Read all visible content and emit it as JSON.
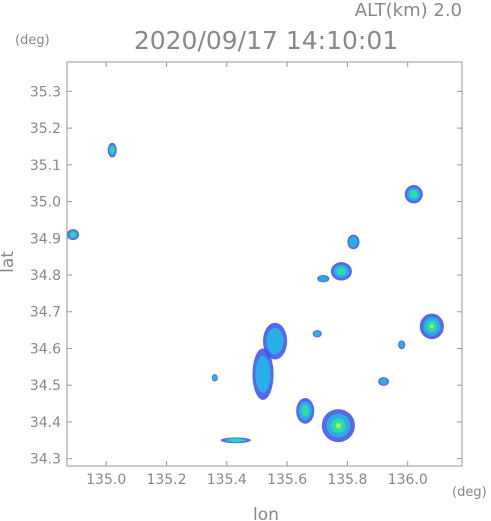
{
  "header": {
    "altitude_label": "ALT(km) 2.0",
    "timestamp": "2020/09/17 14:10:01"
  },
  "chart_data": {
    "type": "heatmap",
    "title": "2020/09/17 14:10:01",
    "annotation": "ALT(km) 2.0",
    "xlabel": "lon",
    "ylabel": "lat",
    "x_unit": "(deg)",
    "y_unit": "(deg)",
    "xlim": [
      134.87,
      136.18
    ],
    "ylim": [
      34.28,
      35.38
    ],
    "x_ticks": [
      135.0,
      135.2,
      135.4,
      135.6,
      135.8,
      136.0
    ],
    "x_tick_labels": [
      "135.0",
      "135.2",
      "135.4",
      "135.6",
      "135.8",
      "136.0"
    ],
    "y_ticks": [
      34.3,
      34.4,
      34.5,
      34.6,
      34.7,
      34.8,
      34.9,
      35.0,
      35.1,
      35.2,
      35.3
    ],
    "y_tick_labels": [
      "34.3",
      "34.4",
      "34.5",
      "34.6",
      "34.7",
      "34.8",
      "34.9",
      "35.0",
      "35.1",
      "35.2",
      "35.3"
    ],
    "grid": false,
    "colors": {
      "axis": "#999999",
      "text": "#888888",
      "weak_echo": "#3a4de8",
      "moderate_echo": "#22b8e8",
      "strong_echo": "#2fe0a0",
      "core_echo": "#b8f23c"
    },
    "echo_cells": [
      {
        "lon": 135.77,
        "lat": 34.39,
        "r_lon": 0.055,
        "r_lat": 0.045,
        "level": 3
      },
      {
        "lon": 135.66,
        "lat": 34.43,
        "r_lon": 0.03,
        "r_lat": 0.035,
        "level": 2
      },
      {
        "lon": 135.52,
        "lat": 34.53,
        "r_lon": 0.035,
        "r_lat": 0.07,
        "level": 1
      },
      {
        "lon": 135.56,
        "lat": 34.62,
        "r_lon": 0.04,
        "r_lat": 0.05,
        "level": 1
      },
      {
        "lon": 135.78,
        "lat": 34.81,
        "r_lon": 0.035,
        "r_lat": 0.025,
        "level": 2
      },
      {
        "lon": 135.82,
        "lat": 34.89,
        "r_lon": 0.02,
        "r_lat": 0.02,
        "level": 1
      },
      {
        "lon": 136.02,
        "lat": 35.02,
        "r_lon": 0.03,
        "r_lat": 0.025,
        "level": 2
      },
      {
        "lon": 136.08,
        "lat": 34.66,
        "r_lon": 0.04,
        "r_lat": 0.035,
        "level": 3
      },
      {
        "lon": 135.98,
        "lat": 34.61,
        "r_lon": 0.012,
        "r_lat": 0.012,
        "level": 1
      },
      {
        "lon": 135.92,
        "lat": 34.51,
        "r_lon": 0.018,
        "r_lat": 0.012,
        "level": 1
      },
      {
        "lon": 134.89,
        "lat": 34.91,
        "r_lon": 0.02,
        "r_lat": 0.015,
        "level": 2
      },
      {
        "lon": 135.43,
        "lat": 34.35,
        "r_lon": 0.05,
        "r_lat": 0.008,
        "level": 2
      },
      {
        "lon": 135.02,
        "lat": 35.14,
        "r_lon": 0.015,
        "r_lat": 0.02,
        "level": 2
      },
      {
        "lon": 135.36,
        "lat": 34.52,
        "r_lon": 0.01,
        "r_lat": 0.01,
        "level": 1
      },
      {
        "lon": 135.7,
        "lat": 34.64,
        "r_lon": 0.015,
        "r_lat": 0.01,
        "level": 1
      },
      {
        "lon": 135.72,
        "lat": 34.79,
        "r_lon": 0.02,
        "r_lat": 0.01,
        "level": 1
      }
    ]
  }
}
